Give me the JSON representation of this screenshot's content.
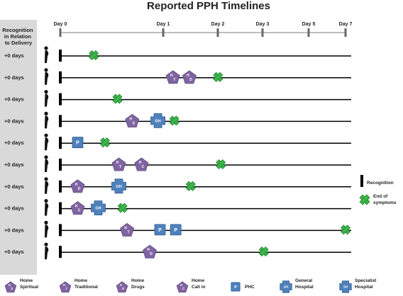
{
  "title": "Reported PPH Timelines",
  "column_header": "Recognition in Relation to Delivery",
  "column_header_lines": [
    "Recognition",
    "in Relation",
    "to Delivery"
  ],
  "days": [
    {
      "label": "Day 0",
      "value": 0
    },
    {
      "label": "Day 1",
      "value": 1
    },
    {
      "label": "Day 2",
      "value": 2
    },
    {
      "label": "Day 3",
      "value": 3
    },
    {
      "label": "Day 5",
      "value": 5
    },
    {
      "label": "Day 7",
      "value": 7
    }
  ],
  "colors": {
    "pentagon": "#8064a2",
    "square": "#4f81bd",
    "end_marker": "#3cb54a",
    "timeline": "#000000",
    "left_panel": "#d9d9d9"
  },
  "icon_types": {
    "HS": {
      "shape": "pentagon",
      "abbr": "H S",
      "legend": [
        "Home",
        "Spiritual"
      ]
    },
    "HT": {
      "shape": "pentagon",
      "abbr": "H T",
      "legend": [
        "Home",
        "Traditional"
      ]
    },
    "HD": {
      "shape": "pentagon",
      "abbr": "H D",
      "legend": [
        "Home",
        "Drugs"
      ]
    },
    "HC": {
      "shape": "pentagon",
      "abbr": "H C",
      "legend": [
        "Home",
        "Call in"
      ]
    },
    "P": {
      "shape": "square",
      "abbr": "P",
      "legend": [
        "PHC"
      ]
    },
    "GH": {
      "shape": "cross",
      "abbr": "GH",
      "legend": [
        "General",
        "Hospital"
      ]
    },
    "SH": {
      "shape": "cross",
      "abbr": "SH",
      "legend": [
        "Specialist",
        "Hospital"
      ]
    }
  },
  "legend_order": [
    "HS",
    "HT",
    "HD",
    "HC",
    "P",
    "GH",
    "SH"
  ],
  "side_legend": {
    "recognition": "Recognition",
    "end_of_symptoms": [
      "End of",
      "symptoms"
    ]
  },
  "rows": [
    {
      "recognition": "+0 days",
      "icons": [],
      "end": 0.27
    },
    {
      "recognition": "+0 days",
      "icons": [
        {
          "type": "HT",
          "day": 1.05
        },
        {
          "type": "HD",
          "day": 1.35
        }
      ],
      "end": 1.9
    },
    {
      "recognition": "+0 days",
      "icons": [],
      "end": 0.5
    },
    {
      "recognition": "+0 days",
      "icons": [
        {
          "type": "HS",
          "day": 0.63
        },
        {
          "type": "GH",
          "day": 0.88
        }
      ],
      "end": 1.1
    },
    {
      "recognition": "+0 days",
      "icons": [
        {
          "type": "P",
          "day": 0.1
        }
      ],
      "end": 0.38
    },
    {
      "recognition": "+0 days",
      "icons": [
        {
          "type": "HT",
          "day": 0.5
        },
        {
          "type": "HC",
          "day": 0.72
        }
      ],
      "end": 1.95
    },
    {
      "recognition": "+0 days",
      "icons": [
        {
          "type": "HD",
          "day": 0.1
        },
        {
          "type": "GH",
          "day": 0.5
        }
      ],
      "end": 1.4
    },
    {
      "recognition": "+0 days",
      "icons": [
        {
          "type": "HC",
          "day": 0.1
        },
        {
          "type": "GH",
          "day": 0.3
        }
      ],
      "end": 0.55
    },
    {
      "recognition": "+0 days",
      "icons": [
        {
          "type": "HT",
          "day": 0.58
        },
        {
          "type": "P",
          "day": 0.9
        },
        {
          "type": "P",
          "day": 1.1
        }
      ],
      "end": 7
    },
    {
      "recognition": "+0 days",
      "icons": [
        {
          "type": "HD",
          "day": 0.8
        }
      ],
      "end": 2.9
    }
  ]
}
